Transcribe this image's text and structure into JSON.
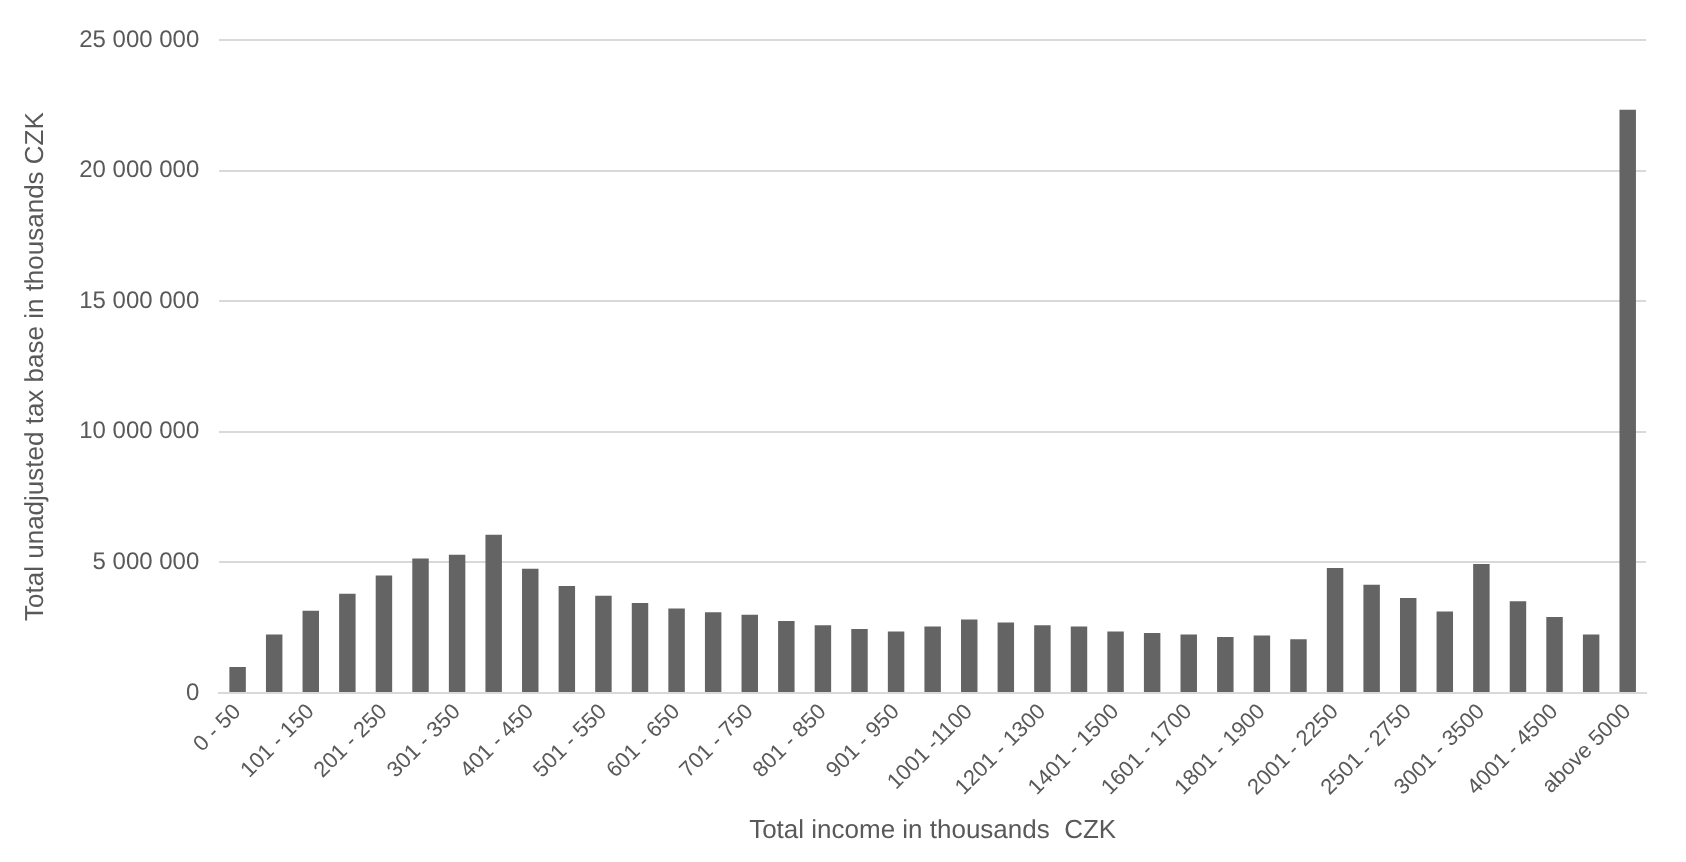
{
  "chart_data": {
    "type": "bar",
    "xlabel": "Total income in thousands  CZK",
    "ylabel": "Total unadjusted tax base in thousands CZK",
    "categories": [
      "0 - 50",
      null,
      "101 - 150",
      null,
      "201 - 250",
      null,
      "301 - 350",
      null,
      "401 - 450",
      null,
      "501 - 550",
      null,
      "601 - 650",
      null,
      "701 - 750",
      null,
      "801 - 850",
      null,
      "901 - 950",
      null,
      "1001 -1100",
      null,
      "1201 - 1300",
      null,
      "1401 - 1500",
      null,
      "1601 - 1700",
      null,
      "1801 - 1900",
      null,
      "2001 - 2250",
      null,
      "2501 - 2750",
      null,
      "3001 - 3500",
      null,
      "4001 - 4500",
      null,
      "above 5000"
    ],
    "values": [
      1000000,
      2240000,
      3150000,
      3800000,
      4500000,
      5150000,
      5300000,
      6060000,
      4760000,
      4100000,
      3730000,
      3450000,
      3240000,
      3090000,
      3000000,
      2760000,
      2600000,
      2450000,
      2360000,
      2550000,
      2820000,
      2700000,
      2600000,
      2550000,
      2360000,
      2300000,
      2240000,
      2150000,
      2200000,
      2060000,
      4790000,
      4150000,
      3640000,
      3120000,
      4940000,
      3520000,
      2910000,
      2240000,
      22330000
    ],
    "color": "#646464",
    "ylim": [
      0,
      25000000
    ],
    "yticks": [
      {
        "value": 0,
        "label": "0"
      },
      {
        "value": 5000000,
        "label": "5 000 000"
      },
      {
        "value": 10000000,
        "label": "10 000 000"
      },
      {
        "value": 15000000,
        "label": "15 000 000"
      },
      {
        "value": 20000000,
        "label": "20 000 000"
      },
      {
        "value": 25000000,
        "label": "25 000 000"
      }
    ],
    "grid": "y",
    "legend": false
  }
}
